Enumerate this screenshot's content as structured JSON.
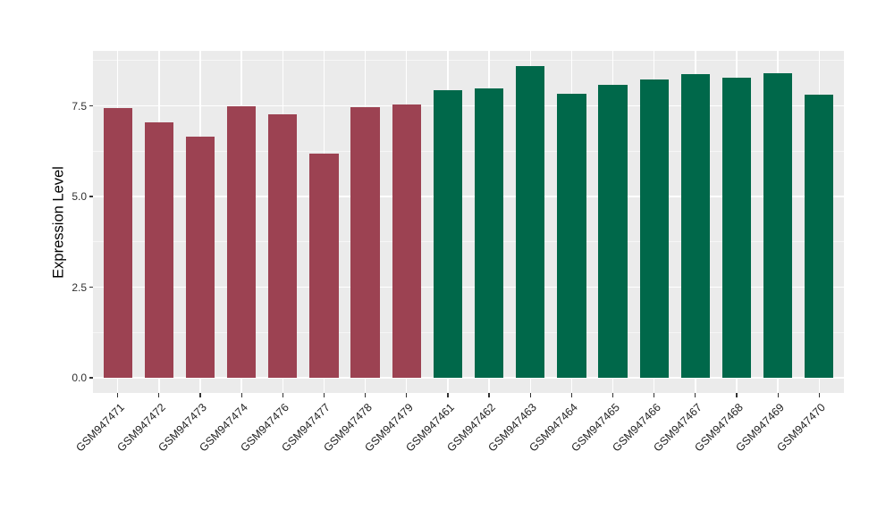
{
  "chart_data": {
    "type": "bar",
    "title": "",
    "xlabel": "",
    "ylabel": "Expression Level",
    "categories": [
      "GSM947471",
      "GSM947472",
      "GSM947473",
      "GSM947474",
      "GSM947476",
      "GSM947477",
      "GSM947478",
      "GSM947479",
      "GSM947461",
      "GSM947462",
      "GSM947463",
      "GSM947464",
      "GSM947465",
      "GSM947466",
      "GSM947467",
      "GSM947468",
      "GSM947469",
      "GSM947470"
    ],
    "values": [
      7.45,
      7.06,
      6.66,
      7.48,
      7.28,
      6.19,
      7.47,
      7.55,
      7.94,
      7.99,
      8.6,
      7.84,
      8.09,
      8.22,
      8.37,
      8.29,
      8.41,
      7.82
    ],
    "bar_groups": [
      "red",
      "red",
      "red",
      "red",
      "red",
      "red",
      "red",
      "red",
      "green",
      "green",
      "green",
      "green",
      "green",
      "green",
      "green",
      "green",
      "green",
      "green"
    ],
    "group_colors": {
      "red": "#9C4252",
      "green": "#00684A"
    },
    "yticks": [
      0.0,
      2.5,
      5.0,
      7.5
    ],
    "ytick_labels": [
      "0.0",
      "2.5",
      "5.0",
      "7.5"
    ],
    "minor_yticks": [
      1.25,
      3.75,
      6.25,
      8.75
    ],
    "ylim": [
      -0.42,
      9.02
    ],
    "grid": true,
    "legend": "none",
    "panel_background": "#EBEBEB",
    "gridline_color": "#FFFFFF"
  }
}
